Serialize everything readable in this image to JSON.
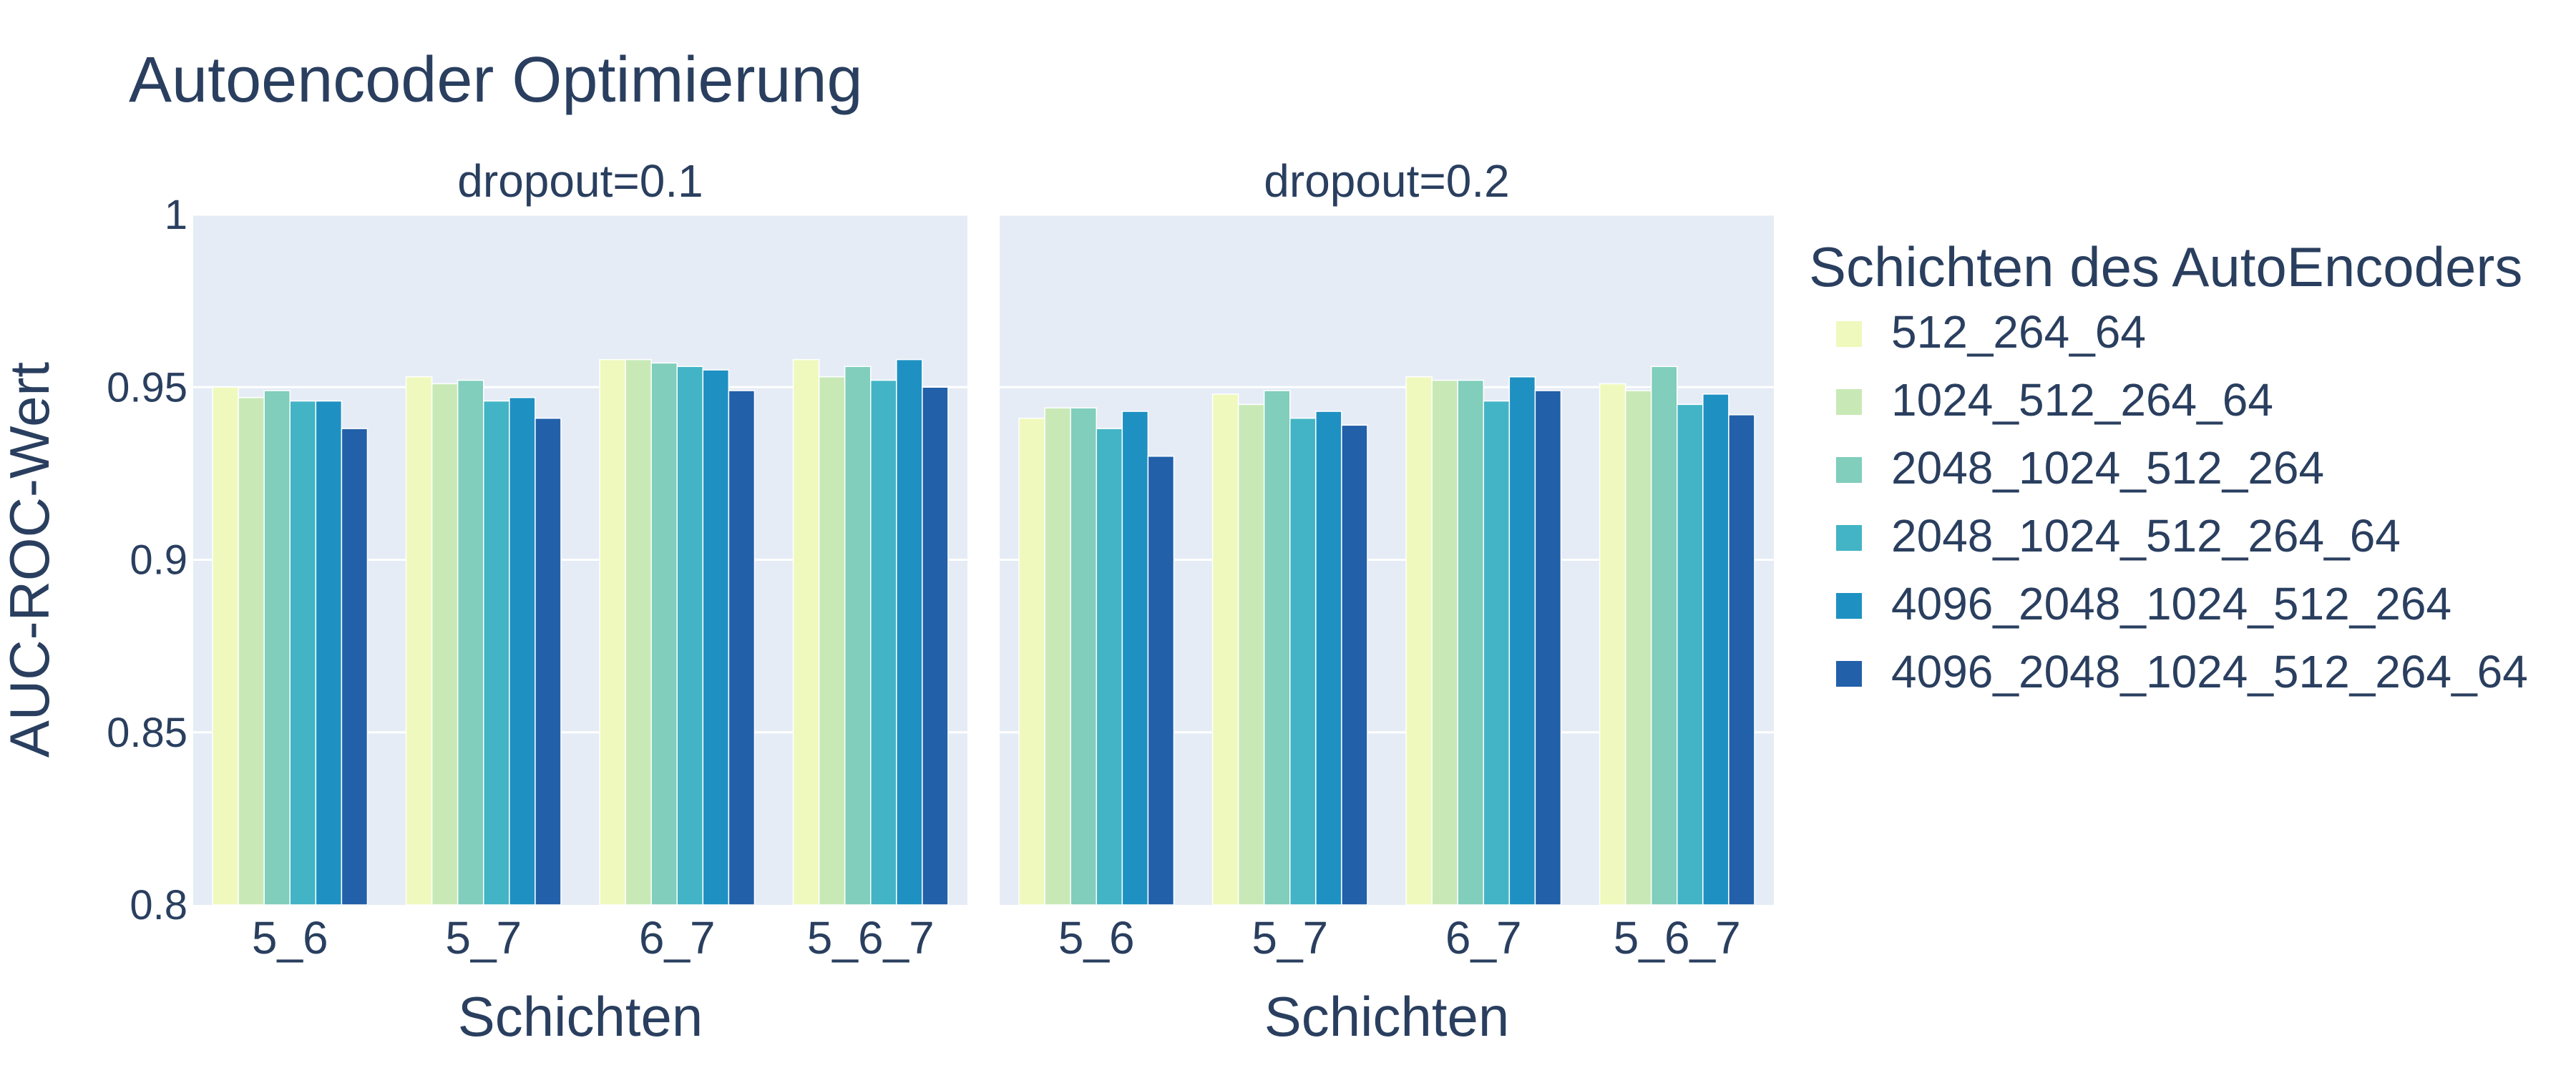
{
  "title": "Autoencoder Optimierung",
  "chart_data": {
    "type": "bar",
    "title": "Autoencoder Optimierung",
    "ylabel": "AUC-ROC-Wert",
    "ylim": [
      0.8,
      1
    ],
    "yticks": [
      "0.8",
      "0.85",
      "0.9",
      "0.95",
      "1"
    ],
    "grid": true,
    "legend_title": "Schichten des AutoEncoders",
    "legend_position": "right",
    "series_names": [
      "512_264_64",
      "1024_512_264_64",
      "2048_1024_512_264",
      "2048_1024_512_264_64",
      "4096_2048_1024_512_264",
      "4096_2048_1024_512_264_64"
    ],
    "colors": [
      "#eff9bd",
      "#c8e9b6",
      "#80cebb",
      "#42b4c5",
      "#1e91c2",
      "#2260a9"
    ],
    "categories": [
      "5_6",
      "5_7",
      "6_7",
      "5_6_7"
    ],
    "panels": [
      {
        "facet_title": "dropout=0.1",
        "xlabel": "Schichten",
        "series": [
          {
            "name": "512_264_64",
            "values": [
              0.95,
              0.953,
              0.958,
              0.958
            ]
          },
          {
            "name": "1024_512_264_64",
            "values": [
              0.947,
              0.951,
              0.958,
              0.953
            ]
          },
          {
            "name": "2048_1024_512_264",
            "values": [
              0.949,
              0.952,
              0.957,
              0.956
            ]
          },
          {
            "name": "2048_1024_512_264_64",
            "values": [
              0.946,
              0.946,
              0.956,
              0.952
            ]
          },
          {
            "name": "4096_2048_1024_512_264",
            "values": [
              0.946,
              0.947,
              0.955,
              0.958
            ]
          },
          {
            "name": "4096_2048_1024_512_264_64",
            "values": [
              0.938,
              0.941,
              0.949,
              0.95
            ]
          }
        ]
      },
      {
        "facet_title": "dropout=0.2",
        "xlabel": "Schichten",
        "series": [
          {
            "name": "512_264_64",
            "values": [
              0.941,
              0.948,
              0.953,
              0.951
            ]
          },
          {
            "name": "1024_512_264_64",
            "values": [
              0.944,
              0.945,
              0.952,
              0.949
            ]
          },
          {
            "name": "2048_1024_512_264",
            "values": [
              0.944,
              0.949,
              0.952,
              0.956
            ]
          },
          {
            "name": "2048_1024_512_264_64",
            "values": [
              0.938,
              0.941,
              0.946,
              0.945
            ]
          },
          {
            "name": "4096_2048_1024_512_264",
            "values": [
              0.943,
              0.943,
              0.953,
              0.948
            ]
          },
          {
            "name": "4096_2048_1024_512_264_64",
            "values": [
              0.93,
              0.939,
              0.949,
              0.942
            ]
          }
        ]
      }
    ]
  }
}
